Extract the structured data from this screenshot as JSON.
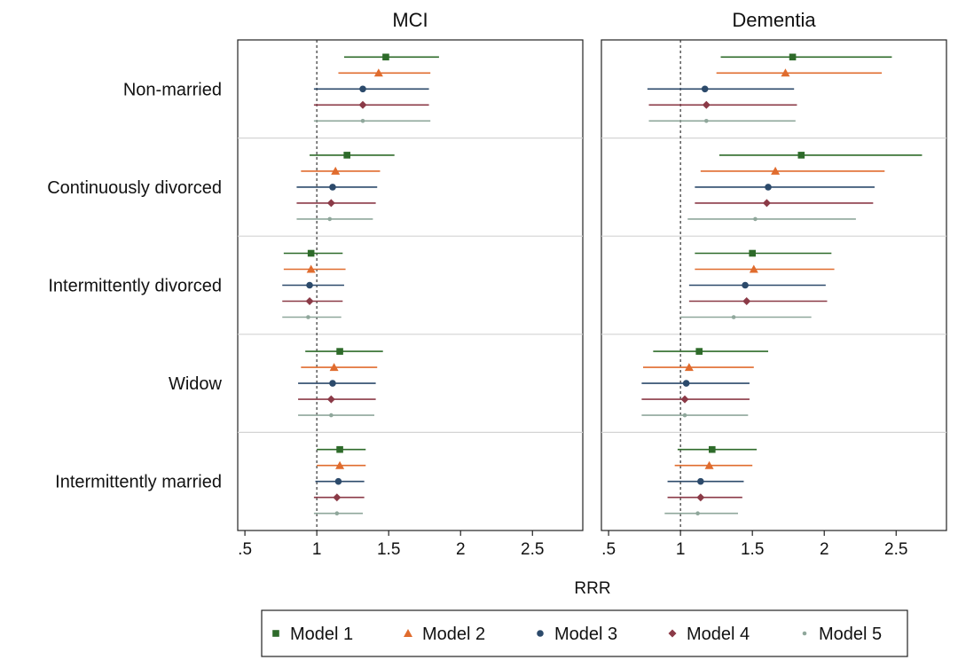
{
  "chart_data": {
    "type": "forest-plot",
    "xlabel": "RRR",
    "xticks": [
      0.5,
      1,
      1.5,
      2,
      2.5
    ],
    "xtick_labels": [
      ".5",
      "1",
      "1.5",
      "2",
      "2.5"
    ],
    "xlim": [
      0.45,
      2.85
    ],
    "reference_line": 1,
    "grid": false,
    "legend_position": "bottom",
    "categories": [
      "Non-married",
      "Continuously divorced",
      "Intermittently divorced",
      "Widow",
      "Intermittently married"
    ],
    "series": [
      {
        "name": "Model 1",
        "color": "#2e6b2a",
        "marker": "square"
      },
      {
        "name": "Model 2",
        "color": "#e06c2e",
        "marker": "triangle"
      },
      {
        "name": "Model 3",
        "color": "#2c4a6b",
        "marker": "circle"
      },
      {
        "name": "Model 4",
        "color": "#8b3a47",
        "marker": "diamond"
      },
      {
        "name": "Model 5",
        "color": "#8fa79b",
        "marker": "dot"
      }
    ],
    "panels": [
      {
        "title": "MCI",
        "estimates": [
          [
            [
              1.48,
              1.19,
              1.85
            ],
            [
              1.43,
              1.15,
              1.79
            ],
            [
              1.32,
              0.98,
              1.78
            ],
            [
              1.32,
              0.98,
              1.78
            ],
            [
              1.32,
              0.98,
              1.79
            ]
          ],
          [
            [
              1.21,
              0.95,
              1.54
            ],
            [
              1.13,
              0.89,
              1.44
            ],
            [
              1.11,
              0.86,
              1.42
            ],
            [
              1.1,
              0.86,
              1.41
            ],
            [
              1.09,
              0.86,
              1.39
            ]
          ],
          [
            [
              0.96,
              0.77,
              1.18
            ],
            [
              0.96,
              0.77,
              1.2
            ],
            [
              0.95,
              0.76,
              1.19
            ],
            [
              0.95,
              0.76,
              1.18
            ],
            [
              0.94,
              0.76,
              1.17
            ]
          ],
          [
            [
              1.16,
              0.92,
              1.46
            ],
            [
              1.12,
              0.89,
              1.42
            ],
            [
              1.11,
              0.87,
              1.41
            ],
            [
              1.1,
              0.87,
              1.41
            ],
            [
              1.1,
              0.87,
              1.4
            ]
          ],
          [
            [
              1.16,
              1.0,
              1.34
            ],
            [
              1.16,
              1.0,
              1.34
            ],
            [
              1.15,
              0.99,
              1.33
            ],
            [
              1.14,
              0.98,
              1.33
            ],
            [
              1.14,
              0.98,
              1.32
            ]
          ]
        ]
      },
      {
        "title": "Dementia",
        "estimates": [
          [
            [
              1.78,
              1.28,
              2.47
            ],
            [
              1.73,
              1.25,
              2.4
            ],
            [
              1.17,
              0.77,
              1.79
            ],
            [
              1.18,
              0.78,
              1.81
            ],
            [
              1.18,
              0.78,
              1.8
            ]
          ],
          [
            [
              1.84,
              1.27,
              2.68
            ],
            [
              1.66,
              1.14,
              2.42
            ],
            [
              1.61,
              1.1,
              2.35
            ],
            [
              1.6,
              1.1,
              2.34
            ],
            [
              1.52,
              1.05,
              2.22
            ]
          ],
          [
            [
              1.5,
              1.1,
              2.05
            ],
            [
              1.51,
              1.1,
              2.07
            ],
            [
              1.45,
              1.06,
              2.01
            ],
            [
              1.46,
              1.06,
              2.02
            ],
            [
              1.37,
              1.0,
              1.91
            ]
          ],
          [
            [
              1.13,
              0.81,
              1.61
            ],
            [
              1.06,
              0.74,
              1.51
            ],
            [
              1.04,
              0.73,
              1.48
            ],
            [
              1.03,
              0.73,
              1.48
            ],
            [
              1.03,
              0.73,
              1.47
            ]
          ],
          [
            [
              1.22,
              0.98,
              1.53
            ],
            [
              1.2,
              0.96,
              1.5
            ],
            [
              1.14,
              0.91,
              1.44
            ],
            [
              1.14,
              0.91,
              1.43
            ],
            [
              1.12,
              0.89,
              1.4
            ]
          ]
        ]
      }
    ]
  }
}
